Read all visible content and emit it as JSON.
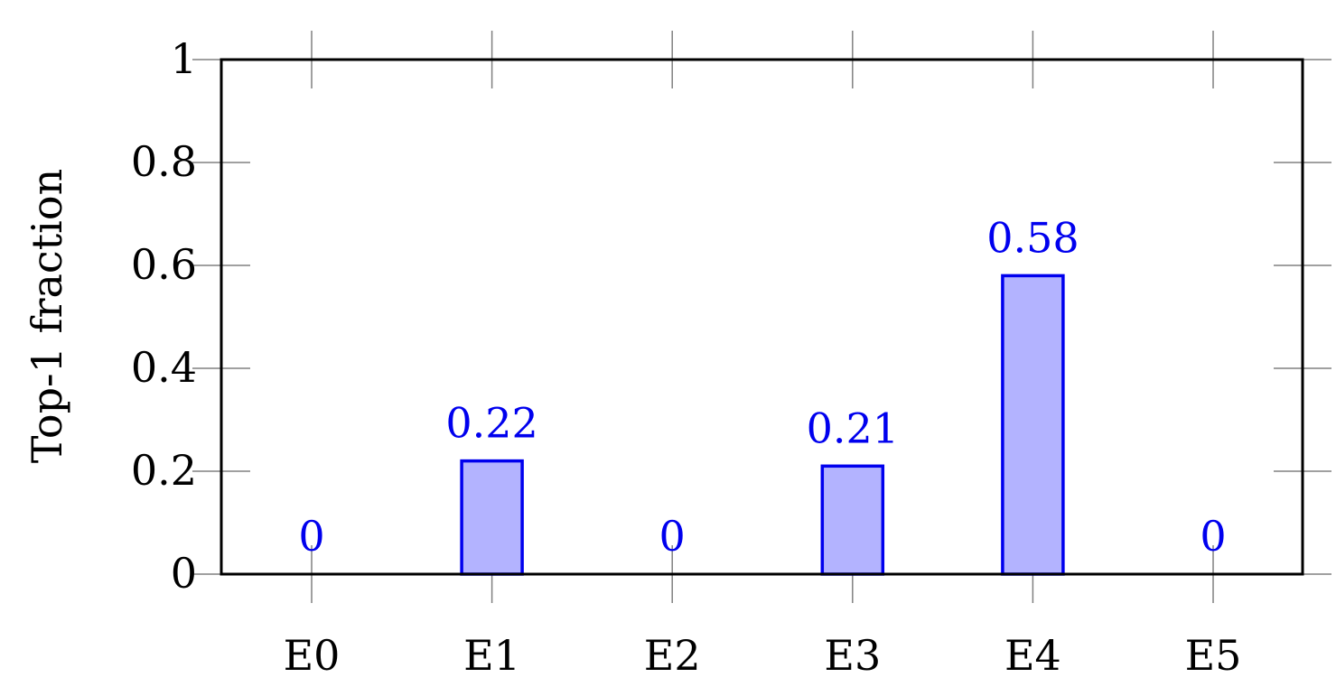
{
  "chart_data": {
    "type": "bar",
    "title": "",
    "xlabel": "",
    "ylabel": "Top-1 fraction",
    "categories": [
      "E0",
      "E1",
      "E2",
      "E3",
      "E4",
      "E5"
    ],
    "values": [
      0,
      0.22,
      0,
      0.21,
      0.58,
      0
    ],
    "data_labels": [
      "0",
      "0.22",
      "0",
      "0.21",
      "0.58",
      "0"
    ],
    "ylim": [
      0,
      1
    ],
    "yticks": [
      0,
      0.2,
      0.4,
      0.6,
      0.8,
      1
    ],
    "ytick_labels": [
      "0",
      "0.2",
      "0.4",
      "0.6",
      "0.8",
      "1"
    ],
    "grid": false,
    "legend": "none",
    "colors": {
      "bar_fill": "#b3b3ff",
      "bar_stroke": "#0000ee",
      "label": "#0000ee",
      "axis": "#000000",
      "tick": "#808080"
    }
  }
}
